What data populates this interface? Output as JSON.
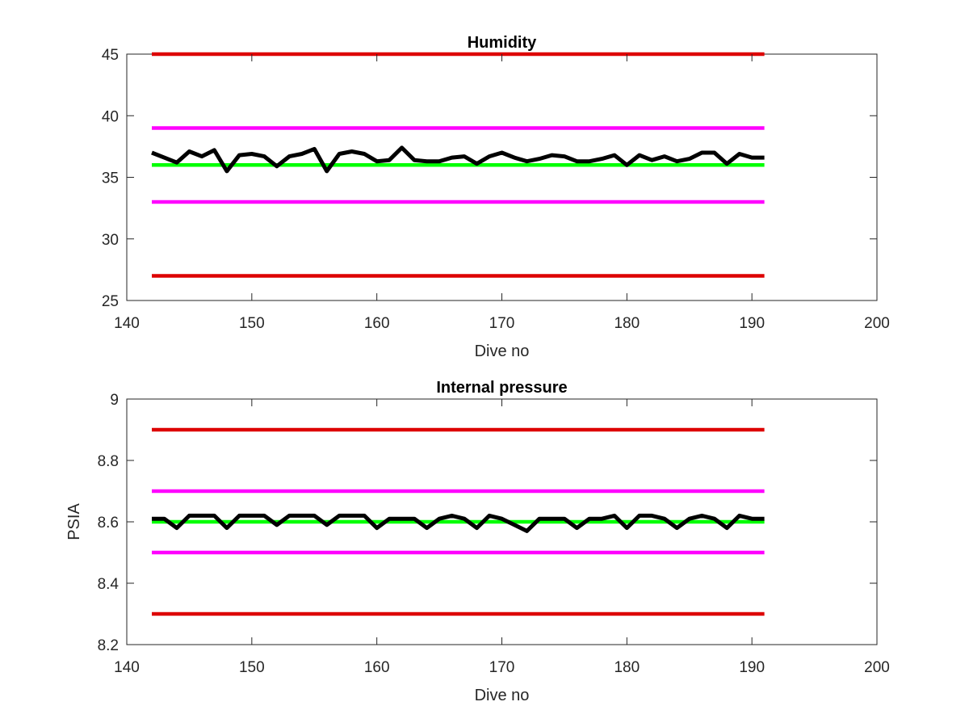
{
  "colors": {
    "data_line": "#000000",
    "target_line": "#00ff00",
    "warning_line": "#ff00ff",
    "limit_line": "#dd0000",
    "axes": "#262626"
  },
  "chart_data": [
    {
      "type": "line",
      "title": "Humidity",
      "xlabel": "Dive no",
      "ylabel": "",
      "xlim": [
        140,
        200
      ],
      "ylim": [
        25,
        45
      ],
      "xticks": [
        "140",
        "150",
        "160",
        "170",
        "180",
        "190",
        "200"
      ],
      "yticks": [
        "25",
        "30",
        "35",
        "40",
        "45"
      ],
      "grid": false,
      "series": [
        {
          "role": "data",
          "x": [
            142,
            143,
            144,
            145,
            146,
            147,
            148,
            149,
            150,
            151,
            152,
            153,
            154,
            155,
            156,
            157,
            158,
            159,
            160,
            161,
            162,
            163,
            164,
            165,
            166,
            167,
            168,
            169,
            170,
            171,
            172,
            173,
            174,
            175,
            176,
            177,
            178,
            179,
            180,
            181,
            182,
            183,
            184,
            185,
            186,
            187,
            188,
            189,
            190,
            191
          ],
          "values": [
            37.0,
            36.6,
            36.2,
            37.1,
            36.7,
            37.2,
            35.5,
            36.8,
            36.9,
            36.7,
            35.9,
            36.7,
            36.9,
            37.3,
            35.5,
            36.9,
            37.1,
            36.9,
            36.3,
            36.4,
            37.4,
            36.4,
            36.3,
            36.3,
            36.6,
            36.7,
            36.1,
            36.7,
            37.0,
            36.6,
            36.3,
            36.5,
            36.8,
            36.7,
            36.3,
            36.3,
            36.5,
            36.8,
            36.0,
            36.8,
            36.4,
            36.7,
            36.3,
            36.5,
            37.0,
            37.0,
            36.1,
            36.9,
            36.6,
            36.6
          ]
        },
        {
          "role": "target",
          "x": [
            142,
            191
          ],
          "values": [
            36,
            36
          ]
        },
        {
          "role": "warning-upper",
          "x": [
            142,
            191
          ],
          "values": [
            39,
            39
          ]
        },
        {
          "role": "warning-lower",
          "x": [
            142,
            191
          ],
          "values": [
            33,
            33
          ]
        },
        {
          "role": "limit-upper",
          "x": [
            142,
            191
          ],
          "values": [
            45,
            45
          ]
        },
        {
          "role": "limit-lower",
          "x": [
            142,
            191
          ],
          "values": [
            27,
            27
          ]
        }
      ]
    },
    {
      "type": "line",
      "title": "Internal pressure",
      "xlabel": "Dive no",
      "ylabel": "PSIA",
      "xlim": [
        140,
        200
      ],
      "ylim": [
        8.2,
        9.0
      ],
      "xticks": [
        "140",
        "150",
        "160",
        "170",
        "180",
        "190",
        "200"
      ],
      "yticks": [
        "8.2",
        "8.4",
        "8.6",
        "8.8",
        "9"
      ],
      "grid": false,
      "series": [
        {
          "role": "data",
          "x": [
            142,
            143,
            144,
            145,
            146,
            147,
            148,
            149,
            150,
            151,
            152,
            153,
            154,
            155,
            156,
            157,
            158,
            159,
            160,
            161,
            162,
            163,
            164,
            165,
            166,
            167,
            168,
            169,
            170,
            171,
            172,
            173,
            174,
            175,
            176,
            177,
            178,
            179,
            180,
            181,
            182,
            183,
            184,
            185,
            186,
            187,
            188,
            189,
            190,
            191
          ],
          "values": [
            8.61,
            8.61,
            8.58,
            8.62,
            8.62,
            8.62,
            8.58,
            8.62,
            8.62,
            8.62,
            8.59,
            8.62,
            8.62,
            8.62,
            8.59,
            8.62,
            8.62,
            8.62,
            8.58,
            8.61,
            8.61,
            8.61,
            8.58,
            8.61,
            8.62,
            8.61,
            8.58,
            8.62,
            8.61,
            8.59,
            8.57,
            8.61,
            8.61,
            8.61,
            8.58,
            8.61,
            8.61,
            8.62,
            8.58,
            8.62,
            8.62,
            8.61,
            8.58,
            8.61,
            8.62,
            8.61,
            8.58,
            8.62,
            8.61,
            8.61
          ]
        },
        {
          "role": "target",
          "x": [
            142,
            191
          ],
          "values": [
            8.6,
            8.6
          ]
        },
        {
          "role": "warning-upper",
          "x": [
            142,
            191
          ],
          "values": [
            8.7,
            8.7
          ]
        },
        {
          "role": "warning-lower",
          "x": [
            142,
            191
          ],
          "values": [
            8.5,
            8.5
          ]
        },
        {
          "role": "limit-upper",
          "x": [
            142,
            191
          ],
          "values": [
            8.9,
            8.9
          ]
        },
        {
          "role": "limit-lower",
          "x": [
            142,
            191
          ],
          "values": [
            8.3,
            8.3
          ]
        }
      ]
    }
  ]
}
